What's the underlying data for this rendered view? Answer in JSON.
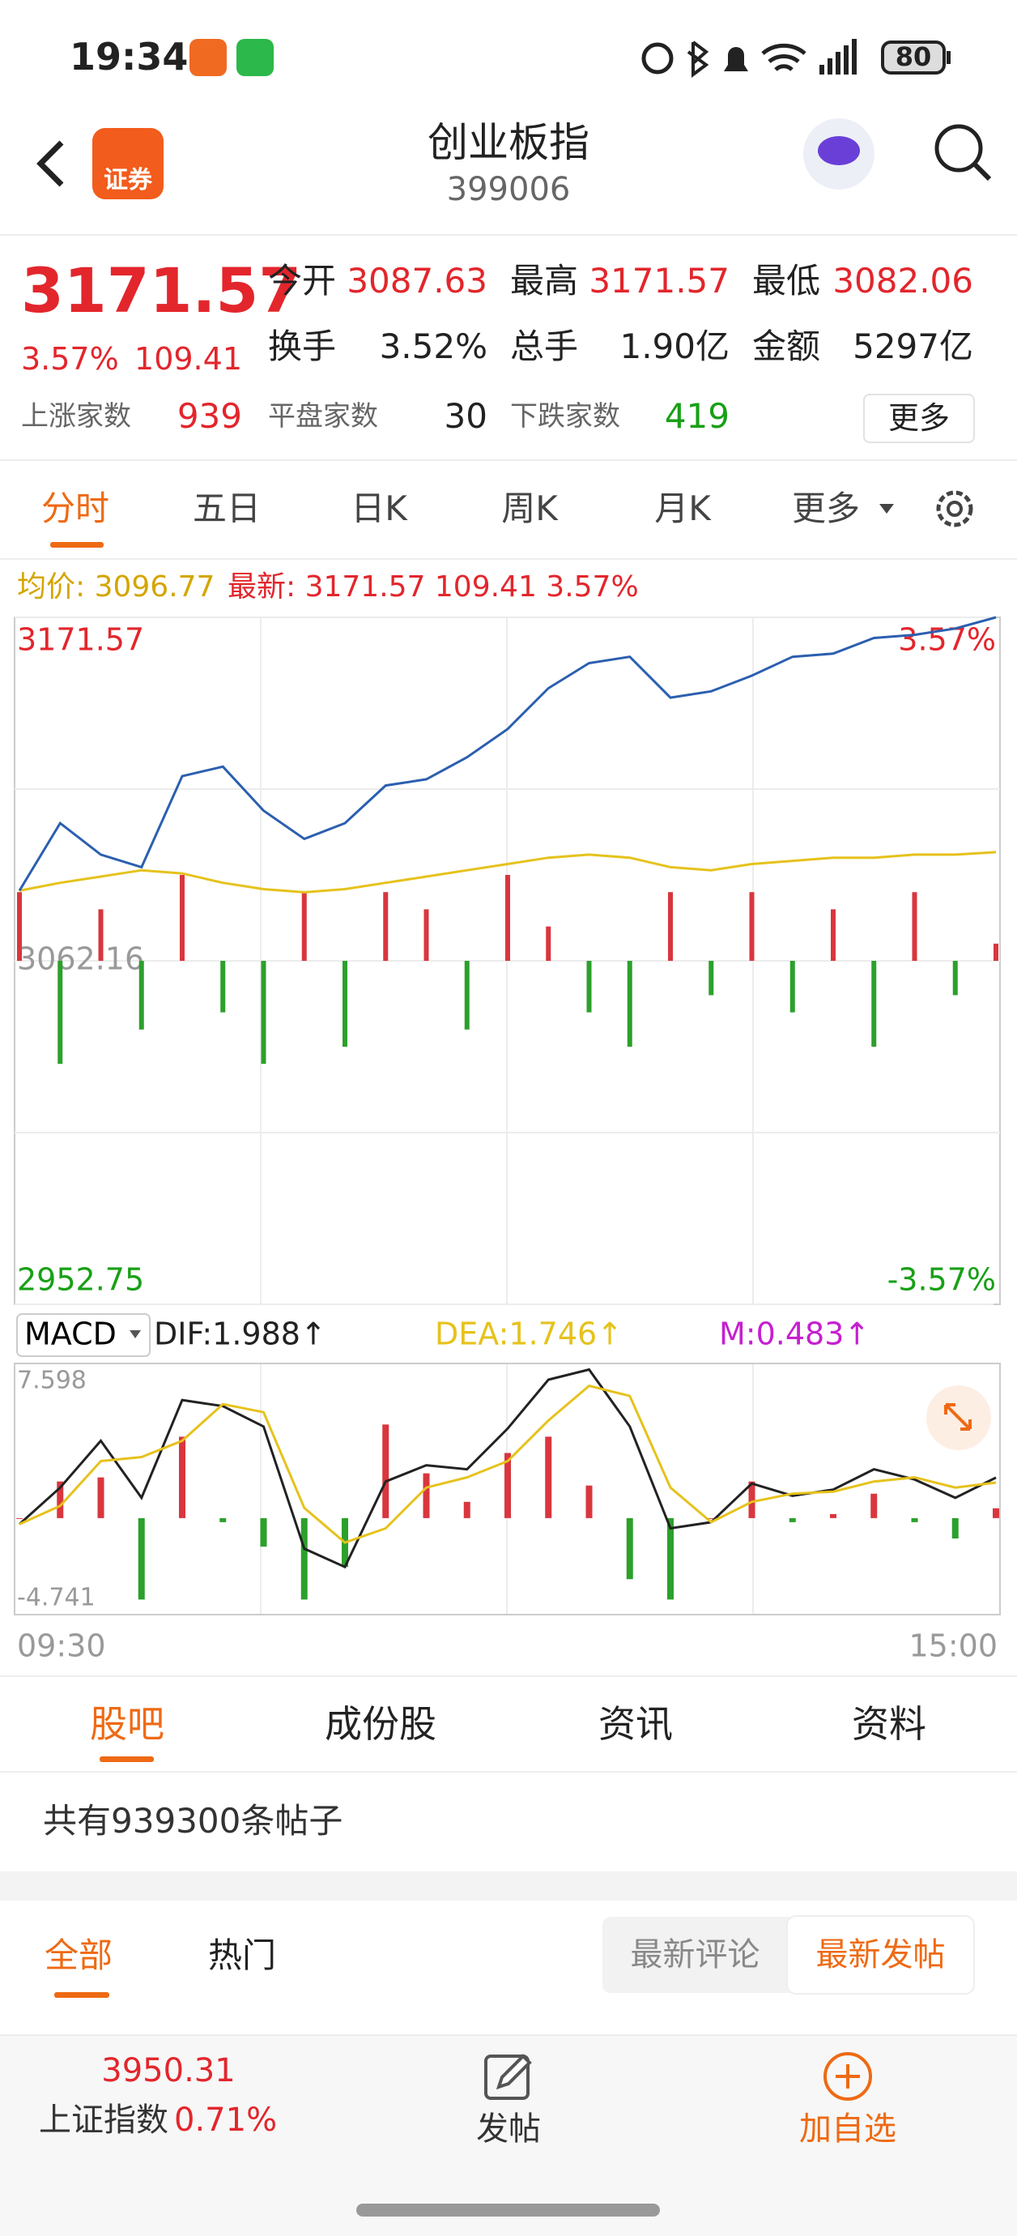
{
  "status_bar": {
    "time": "19:34",
    "battery": "80"
  },
  "header": {
    "logo_text": "证券",
    "title": "创业板指",
    "code": "399006"
  },
  "quote": {
    "price": "3171.57",
    "change_pct": "3.57%",
    "change": "109.41",
    "fields": [
      {
        "label": "今开",
        "value": "3087.63"
      },
      {
        "label": "最高",
        "value": "3171.57"
      },
      {
        "label": "最低",
        "value": "3082.06"
      },
      {
        "label": "换手",
        "value": "3.52%"
      },
      {
        "label": "总手",
        "value": "1.90亿"
      },
      {
        "label": "金额",
        "value": "5297亿"
      }
    ],
    "breadth": [
      {
        "label": "上涨家数",
        "value": "939"
      },
      {
        "label": "平盘家数",
        "value": "30"
      },
      {
        "label": "下跌家数",
        "value": "419"
      }
    ],
    "more": "更多"
  },
  "tabs": [
    "分时",
    "五日",
    "日K",
    "周K",
    "月K",
    "更多"
  ],
  "summary": {
    "avg": "均价: 3096.77",
    "latest": "最新: 3171.57 109.41 3.57%"
  },
  "chart_data": [
    {
      "type": "line",
      "categories": [
        "09:30",
        null,
        null,
        null,
        null,
        null,
        null,
        null,
        null,
        null,
        null,
        null,
        null,
        null,
        null,
        null,
        null,
        null,
        null,
        null,
        null,
        null,
        null,
        null,
        "15:00"
      ],
      "ylim": [
        2952.75,
        3171.57
      ],
      "yticks": [
        3171.57,
        3062.16,
        2952.75
      ],
      "y2lim": [
        -3.57,
        3.57
      ],
      "y2ticks": [
        {
          "value": 3.57,
          "label": "3.57%"
        },
        {
          "value": -3.57,
          "label": "-3.57%"
        }
      ],
      "series": [
        {
          "type": "bar",
          "up_color": "#d9363e",
          "down_color": "#2ca02c",
          "ylim": [
            -1,
            1
          ],
          "values": [
            0.2,
            -0.3,
            0.15,
            -0.2,
            0.25,
            -0.15,
            -0.3,
            0.2,
            -0.25,
            0.2,
            0.15,
            -0.2,
            0.25,
            0.1,
            -0.15,
            -0.25,
            0.2,
            -0.1,
            0.2,
            -0.15,
            0.15,
            -0.25,
            0.2,
            -0.1,
            0.05
          ]
        },
        {
          "type": "line",
          "color": "#e6c21c",
          "values": [
            3084.5,
            3087,
            3089,
            3091,
            3090,
            3087,
            3085,
            3084,
            3085,
            3087,
            3089,
            3091,
            3093,
            3095,
            3096,
            3095,
            3092,
            3091,
            3093,
            3094,
            3095,
            3095,
            3096,
            3096,
            3096.77
          ]
        },
        {
          "type": "line",
          "color": "#2b5fb0",
          "values": [
            3084.5,
            3106,
            3096,
            3092,
            3121,
            3124,
            3110,
            3101,
            3106,
            3118,
            3120,
            3127,
            3136,
            3149,
            3157,
            3159,
            3146,
            3148,
            3153,
            3159,
            3160,
            3165,
            3166,
            3168,
            3171.57
          ]
        }
      ]
    },
    {
      "type": "macd",
      "selector": "MACD",
      "ylim": [
        -4.741,
        7.598
      ],
      "yticks": [
        7.598,
        -4.741
      ],
      "series": [
        {
          "type": "bar",
          "label": "M:0.483↑",
          "color": "#c61fd0",
          "up_color": "#d9363e",
          "down_color": "#2ca02c",
          "values": [
            0,
            1.8,
            2.0,
            -4.0,
            4.0,
            -0.2,
            -1.4,
            -4.0,
            -2.4,
            4.6,
            2.2,
            0.8,
            3.2,
            4.0,
            1.6,
            -3.0,
            -4.0,
            0,
            1.8,
            -0.2,
            0.2,
            1.2,
            -0.2,
            -1.0,
            0.483
          ]
        },
        {
          "type": "line",
          "label": "DIF:1.988↑",
          "color": "#222222",
          "values": [
            -0.3,
            1.5,
            3.8,
            1.0,
            5.8,
            5.5,
            4.5,
            -1.5,
            -2.4,
            1.8,
            2.6,
            2.4,
            4.4,
            6.8,
            7.3,
            4.5,
            -0.5,
            -0.2,
            1.7,
            1.1,
            1.4,
            2.4,
            1.9,
            1.0,
            1.988
          ]
        },
        {
          "type": "line",
          "label": "DEA:1.746↑",
          "color": "#e6c21c",
          "values": [
            -0.3,
            0.6,
            2.8,
            3.0,
            3.8,
            5.6,
            5.2,
            0.5,
            -1.2,
            -0.5,
            1.5,
            2.0,
            2.8,
            4.8,
            6.5,
            6.0,
            1.5,
            -0.2,
            0.8,
            1.2,
            1.3,
            1.8,
            2.0,
            1.5,
            1.746
          ]
        }
      ]
    }
  ],
  "forum_tabs": [
    "股吧",
    "成份股",
    "资讯",
    "资料"
  ],
  "post_count": "共有939300条帖子",
  "filter_tabs": [
    "全部",
    "热门"
  ],
  "sort_buttons": [
    "最新评论",
    "最新发帖"
  ],
  "bottom_bar": {
    "index_value": "3950.31",
    "index_name": "上证指数",
    "index_change": "0.71%",
    "post": "发帖",
    "add": "加自选"
  }
}
